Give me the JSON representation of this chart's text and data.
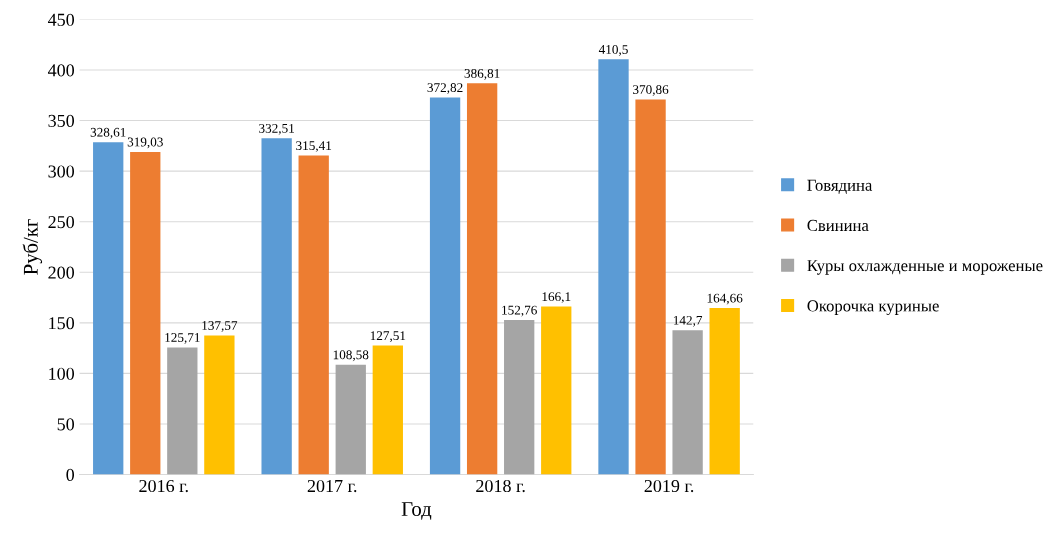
{
  "chart_data": {
    "type": "bar",
    "xlabel": "Год",
    "ylabel": "Руб/кг",
    "categories": [
      "2016 г.",
      "2017 г.",
      "2018 г.",
      "2019 г."
    ],
    "series": [
      {
        "name": "Говядина",
        "color": "#5b9bd5",
        "values": [
          328.61,
          332.51,
          372.82,
          410.5
        ],
        "value_labels": [
          "328,61",
          "332,51",
          "372,82",
          "410,5"
        ]
      },
      {
        "name": "Свинина",
        "color": "#ed7d31",
        "values": [
          319.03,
          315.41,
          386.81,
          370.86
        ],
        "value_labels": [
          "319,03",
          "315,41",
          "386,81",
          "370,86"
        ]
      },
      {
        "name": "Куры охлажденные и мороженые",
        "color": "#a5a5a5",
        "values": [
          125.71,
          108.58,
          152.76,
          142.7
        ],
        "value_labels": [
          "125,71",
          "108,58",
          "152,76",
          "142,7"
        ]
      },
      {
        "name": "Окорочка куриные",
        "color": "#ffc000",
        "values": [
          137.57,
          127.51,
          166.1,
          164.66
        ],
        "value_labels": [
          "137,57",
          "127,51",
          "166,1",
          "164,66"
        ]
      }
    ],
    "ylim": [
      0,
      450
    ],
    "yticks": [
      0,
      50,
      100,
      150,
      200,
      250,
      300,
      350,
      400,
      450
    ],
    "grid": "y",
    "legend": "right"
  }
}
